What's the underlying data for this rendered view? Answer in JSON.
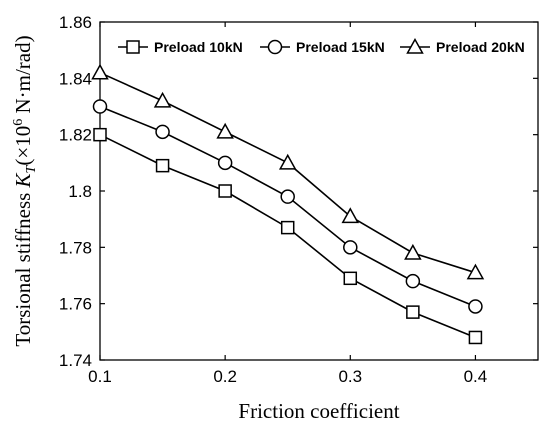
{
  "chart_data": {
    "type": "line",
    "xlabel": "Friction coefficient",
    "ylabel_main": "Torsional stiffness ",
    "ylabel_symbol": "K",
    "ylabel_subscript": "T",
    "ylabel_unit_open": "(×10",
    "ylabel_exponent": "6",
    "ylabel_unit_close": " N·m/rad)",
    "xlim": [
      0.1,
      0.45
    ],
    "ylim": [
      1.74,
      1.86
    ],
    "x_ticks": [
      0.1,
      0.2,
      0.3,
      0.4
    ],
    "x_tick_labels": [
      "0.1",
      "0.2",
      "0.3",
      "0.4"
    ],
    "y_ticks": [
      1.74,
      1.76,
      1.78,
      1.8,
      1.82,
      1.84,
      1.86
    ],
    "y_tick_labels": [
      "1.74",
      "1.76",
      "1.78",
      "1.8",
      "1.82",
      "1.84",
      "1.86"
    ],
    "grid": false,
    "legend_position": "top",
    "x": [
      0.1,
      0.15,
      0.2,
      0.25,
      0.3,
      0.35,
      0.4
    ],
    "series": [
      {
        "name": "Preload 10kN",
        "marker": "square",
        "values": [
          1.82,
          1.809,
          1.8,
          1.787,
          1.769,
          1.757,
          1.748
        ]
      },
      {
        "name": "Preload 15kN",
        "marker": "circle",
        "values": [
          1.83,
          1.821,
          1.81,
          1.798,
          1.78,
          1.768,
          1.759
        ]
      },
      {
        "name": "Preload 20kN",
        "marker": "triangle",
        "values": [
          1.842,
          1.832,
          1.821,
          1.81,
          1.791,
          1.778,
          1.771
        ]
      }
    ],
    "line_color": "#000000"
  }
}
